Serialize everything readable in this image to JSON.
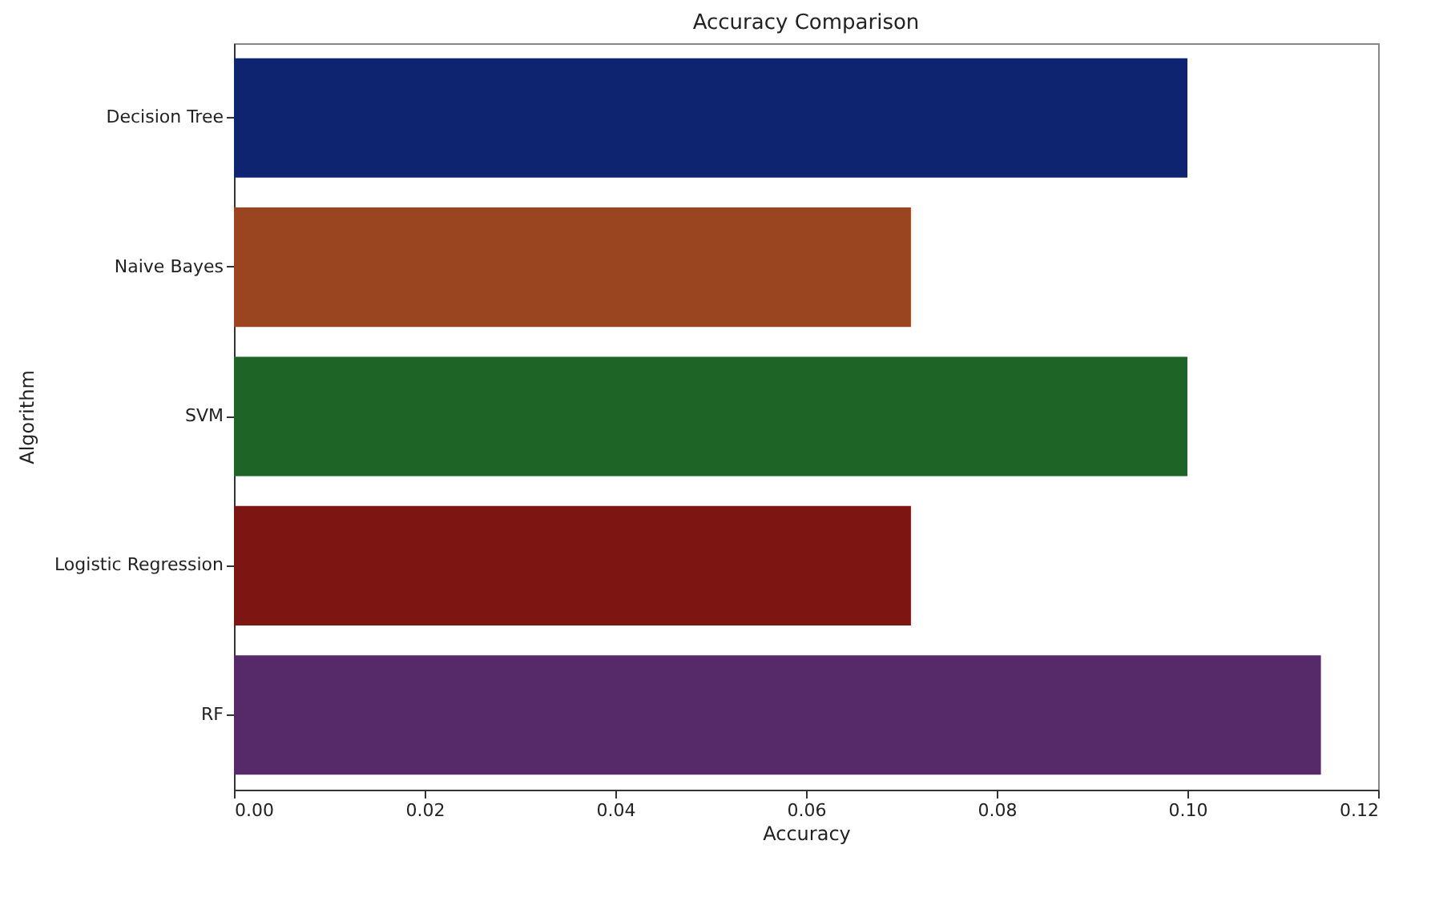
{
  "chart_data": {
    "type": "bar",
    "orientation": "horizontal",
    "title": "Accuracy Comparison",
    "xlabel": "Accuracy",
    "ylabel": "Algorithm",
    "categories": [
      "Decision Tree",
      "Naive Bayes",
      "SVM",
      "Logistic Regression",
      "RF"
    ],
    "values": [
      0.1,
      0.071,
      0.1,
      0.071,
      0.114
    ],
    "colors": [
      "#0f2470",
      "#9a4520",
      "#1f6427",
      "#7d1512",
      "#562a68"
    ],
    "xlim": [
      0,
      0.12
    ],
    "xticks": [
      {
        "value": 0,
        "label": "0.00"
      },
      0.02,
      0.04,
      0.06,
      0.08,
      {
        "value": 0.1,
        "label": "0.10"
      },
      0.12
    ],
    "grid": false,
    "legend": false
  }
}
